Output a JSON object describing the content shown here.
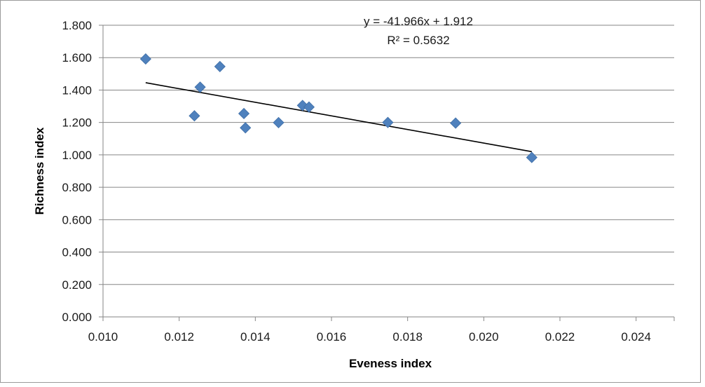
{
  "chart_data": {
    "type": "scatter",
    "xlabel": "Eveness index",
    "ylabel": "Richness index",
    "xlim": [
      0.01,
      0.025
    ],
    "ylim": [
      0.0,
      1.8
    ],
    "x_ticks": [
      "0.010",
      "0.012",
      "0.014",
      "0.016",
      "0.018",
      "0.020",
      "0.022",
      "0.024"
    ],
    "x_tick_values": [
      0.01,
      0.012,
      0.014,
      0.016,
      0.018,
      0.02,
      0.022,
      0.024
    ],
    "y_ticks": [
      "0.000",
      "0.200",
      "0.400",
      "0.600",
      "0.800",
      "1.000",
      "1.200",
      "1.400",
      "1.600",
      "1.800"
    ],
    "y_tick_values": [
      0.0,
      0.2,
      0.4,
      0.6,
      0.8,
      1.0,
      1.2,
      1.4,
      1.6,
      1.8
    ],
    "grid": "horizontal",
    "marker_color": "#4F81BD",
    "trendline_color": "#000000",
    "series": [
      {
        "points": [
          {
            "x": 0.01112,
            "y": 1.592
          },
          {
            "x": 0.0124,
            "y": 1.241
          },
          {
            "x": 0.01255,
            "y": 1.418
          },
          {
            "x": 0.01307,
            "y": 1.545
          },
          {
            "x": 0.0137,
            "y": 1.255
          },
          {
            "x": 0.01374,
            "y": 1.167
          },
          {
            "x": 0.01461,
            "y": 1.199
          },
          {
            "x": 0.01524,
            "y": 1.305
          },
          {
            "x": 0.01541,
            "y": 1.295
          },
          {
            "x": 0.01748,
            "y": 1.2
          },
          {
            "x": 0.01926,
            "y": 1.196
          },
          {
            "x": 0.02126,
            "y": 0.984
          }
        ]
      }
    ],
    "trendline": {
      "slope": -41.966,
      "intercept": 1.912,
      "x_range": [
        0.01112,
        0.02126
      ],
      "equation_label": "y = -41.966x + 1.912",
      "r2_label": "R² = 0.5632"
    }
  }
}
